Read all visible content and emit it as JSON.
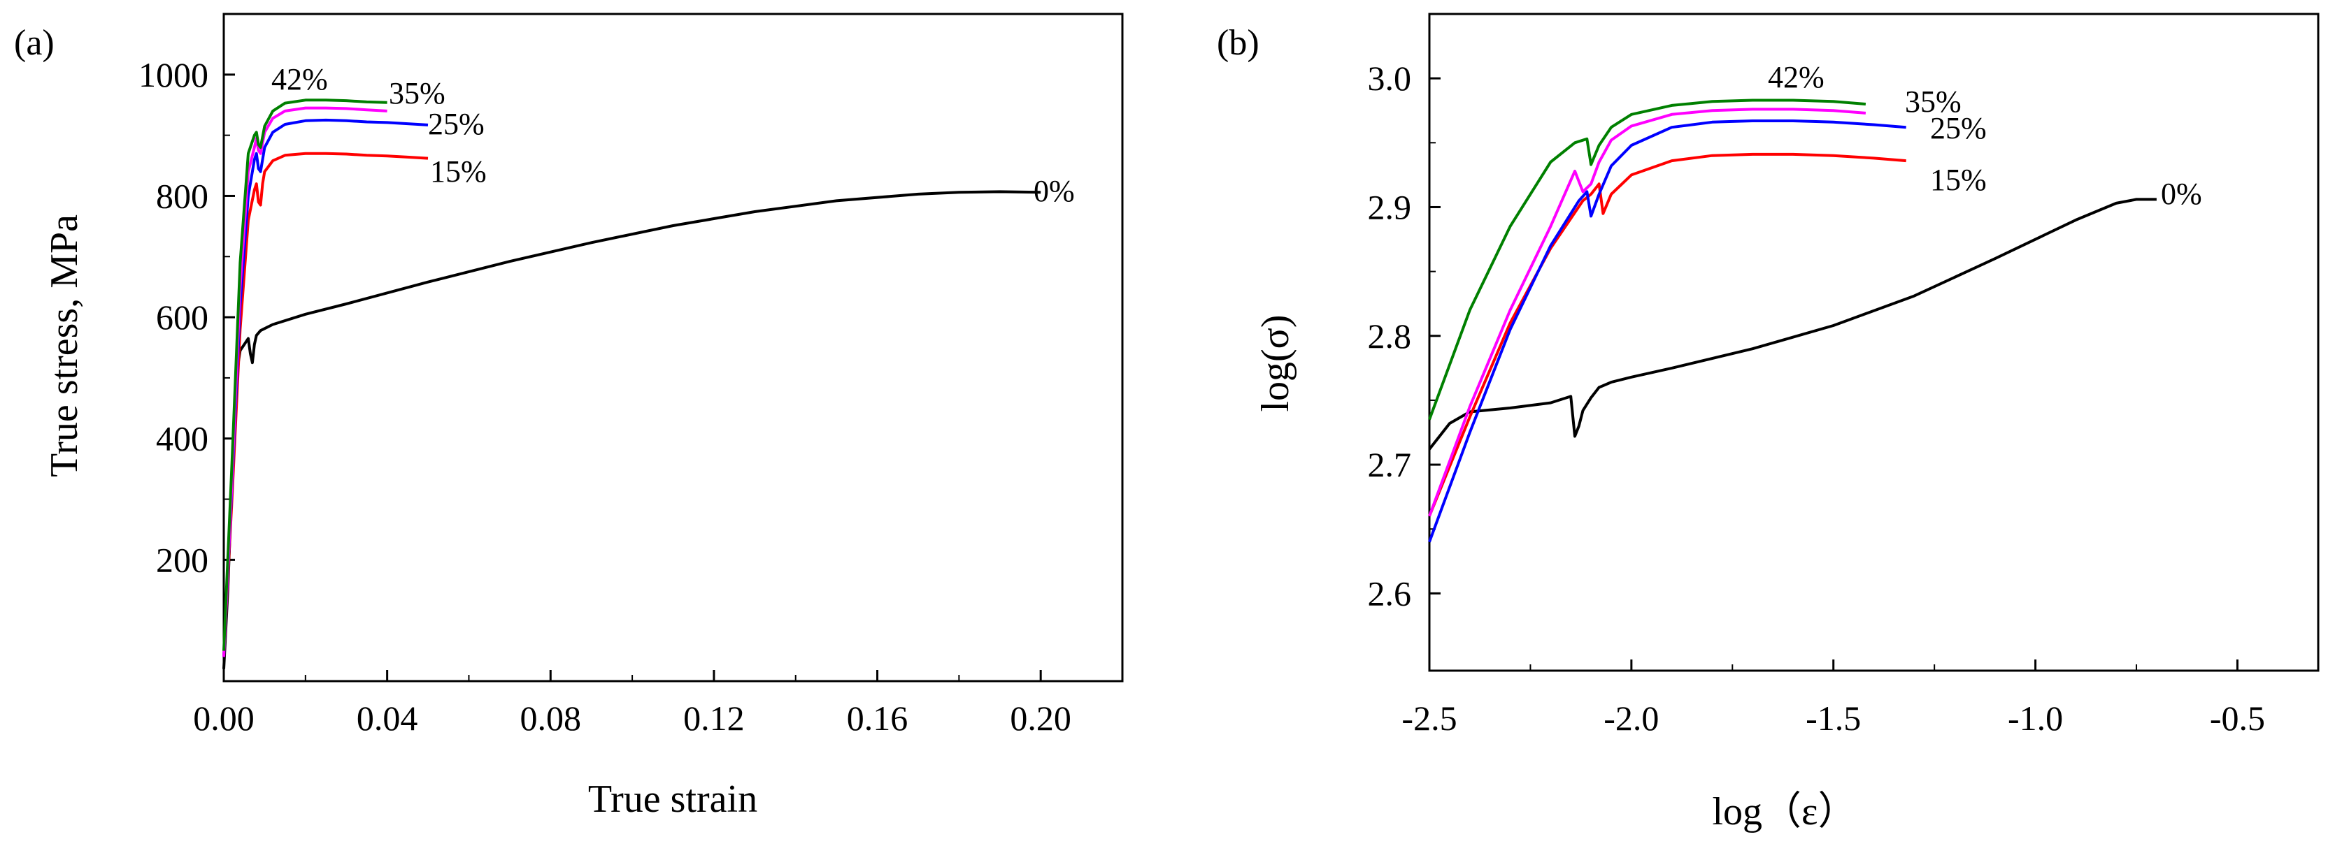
{
  "chart_data": [
    {
      "panel": "(a)",
      "type": "line",
      "title": "(a)",
      "xlabel": "True strain",
      "ylabel": "True stress, MPa",
      "xlim": [
        0,
        0.22
      ],
      "ylim": [
        0,
        1100
      ],
      "xticks": [
        0.0,
        0.04,
        0.08,
        0.12,
        0.16,
        0.2
      ],
      "xtick_labels": [
        "0.00",
        "0.04",
        "0.08",
        "0.12",
        "0.16",
        "0.20"
      ],
      "yticks": [
        200,
        400,
        600,
        800,
        1000
      ],
      "ytick_labels": [
        "200",
        "400",
        "600",
        "800",
        "1000"
      ],
      "grid": false,
      "series": [
        {
          "name": "0%",
          "color": "#000000",
          "x": [
            0.0,
            0.001,
            0.002,
            0.003,
            0.004,
            0.005,
            0.0055,
            0.006,
            0.0065,
            0.007,
            0.0075,
            0.008,
            0.009,
            0.012,
            0.02,
            0.03,
            0.05,
            0.07,
            0.09,
            0.11,
            0.13,
            0.15,
            0.17,
            0.18,
            0.19,
            0.2
          ],
          "y": [
            20,
            150,
            330,
            500,
            545,
            555,
            560,
            565,
            540,
            525,
            555,
            570,
            578,
            588,
            605,
            622,
            658,
            692,
            723,
            751,
            774,
            792,
            803,
            806,
            807,
            806
          ]
        },
        {
          "name": "15%",
          "color": "#ff0000",
          "x": [
            0.0,
            0.002,
            0.004,
            0.006,
            0.0075,
            0.008,
            0.0085,
            0.009,
            0.0095,
            0.01,
            0.012,
            0.015,
            0.02,
            0.025,
            0.03,
            0.035,
            0.04,
            0.045,
            0.05
          ],
          "y": [
            40,
            300,
            580,
            760,
            810,
            820,
            790,
            785,
            820,
            840,
            858,
            867,
            870,
            870,
            869,
            867,
            866,
            864,
            862
          ]
        },
        {
          "name": "25%",
          "color": "#0000ff",
          "x": [
            0.0,
            0.002,
            0.004,
            0.006,
            0.0075,
            0.008,
            0.0085,
            0.009,
            0.01,
            0.012,
            0.015,
            0.02,
            0.025,
            0.03,
            0.035,
            0.04,
            0.045,
            0.05
          ],
          "y": [
            40,
            320,
            620,
            800,
            860,
            870,
            845,
            840,
            880,
            905,
            918,
            924,
            925,
            924,
            922,
            921,
            919,
            917
          ]
        },
        {
          "name": "35%",
          "color": "#ff00ff",
          "x": [
            0.0,
            0.002,
            0.004,
            0.006,
            0.0075,
            0.008,
            0.0085,
            0.009,
            0.01,
            0.012,
            0.015,
            0.02,
            0.025,
            0.03,
            0.035,
            0.04
          ],
          "y": [
            40,
            330,
            650,
            840,
            880,
            895,
            875,
            870,
            905,
            928,
            940,
            945,
            945,
            944,
            942,
            940
          ]
        },
        {
          "name": "42%",
          "color": "#008000",
          "x": [
            0.0,
            0.002,
            0.004,
            0.006,
            0.0075,
            0.008,
            0.0085,
            0.009,
            0.01,
            0.012,
            0.015,
            0.02,
            0.025,
            0.03,
            0.035,
            0.04
          ],
          "y": [
            50,
            360,
            690,
            870,
            900,
            905,
            885,
            880,
            915,
            940,
            953,
            958,
            958,
            957,
            955,
            954
          ]
        }
      ],
      "annotations": [
        "42%",
        "35%",
        "25%",
        "15%",
        "0%"
      ]
    },
    {
      "panel": "(b)",
      "type": "line",
      "title": "(b)",
      "xlabel": "log（ε）",
      "ylabel": "log(σ)",
      "xlim": [
        -2.5,
        -0.3
      ],
      "ylim": [
        2.54,
        3.05
      ],
      "xticks": [
        -2.5,
        -2.0,
        -1.5,
        -1.0,
        -0.5
      ],
      "xtick_labels": [
        "-2.5",
        "-2.0",
        "-1.5",
        "-1.0",
        "-0.5"
      ],
      "yticks": [
        2.6,
        2.7,
        2.8,
        2.9,
        3.0
      ],
      "ytick_labels": [
        "2.6",
        "2.7",
        "2.8",
        "2.9",
        "3.0"
      ],
      "grid": false,
      "series": [
        {
          "name": "0%",
          "color": "#000000",
          "x": [
            -2.5,
            -2.45,
            -2.4,
            -2.3,
            -2.2,
            -2.15,
            -2.14,
            -2.13,
            -2.12,
            -2.1,
            -2.08,
            -2.05,
            -2.0,
            -1.9,
            -1.7,
            -1.5,
            -1.3,
            -1.1,
            -0.9,
            -0.8,
            -0.75,
            -0.7
          ],
          "y": [
            2.712,
            2.732,
            2.741,
            2.744,
            2.748,
            2.753,
            2.722,
            2.73,
            2.742,
            2.752,
            2.76,
            2.764,
            2.768,
            2.775,
            2.79,
            2.808,
            2.831,
            2.86,
            2.89,
            2.903,
            2.906,
            2.906
          ]
        },
        {
          "name": "15%",
          "color": "#ff0000",
          "x": [
            -2.5,
            -2.4,
            -2.3,
            -2.2,
            -2.12,
            -2.1,
            -2.08,
            -2.07,
            -2.05,
            -2.0,
            -1.9,
            -1.8,
            -1.7,
            -1.6,
            -1.5,
            -1.4,
            -1.32
          ],
          "y": [
            2.66,
            2.737,
            2.81,
            2.868,
            2.905,
            2.91,
            2.918,
            2.895,
            2.91,
            2.925,
            2.936,
            2.94,
            2.941,
            2.941,
            2.94,
            2.938,
            2.936
          ]
        },
        {
          "name": "25%",
          "color": "#0000ff",
          "x": [
            -2.5,
            -2.4,
            -2.3,
            -2.2,
            -2.13,
            -2.11,
            -2.1,
            -2.08,
            -2.05,
            -2.0,
            -1.9,
            -1.8,
            -1.7,
            -1.6,
            -1.5,
            -1.4,
            -1.32
          ],
          "y": [
            2.64,
            2.725,
            2.805,
            2.87,
            2.905,
            2.912,
            2.893,
            2.91,
            2.932,
            2.948,
            2.962,
            2.966,
            2.967,
            2.967,
            2.966,
            2.964,
            2.962
          ]
        },
        {
          "name": "35%",
          "color": "#ff00ff",
          "x": [
            -2.5,
            -2.4,
            -2.3,
            -2.2,
            -2.14,
            -2.12,
            -2.1,
            -2.08,
            -2.05,
            -2.0,
            -1.9,
            -1.8,
            -1.7,
            -1.6,
            -1.5,
            -1.42
          ],
          "y": [
            2.66,
            2.745,
            2.82,
            2.885,
            2.928,
            2.912,
            2.918,
            2.935,
            2.952,
            2.963,
            2.972,
            2.975,
            2.976,
            2.976,
            2.975,
            2.973
          ]
        },
        {
          "name": "42%",
          "color": "#008000",
          "x": [
            -2.5,
            -2.4,
            -2.3,
            -2.2,
            -2.14,
            -2.11,
            -2.1,
            -2.08,
            -2.05,
            -2.0,
            -1.9,
            -1.8,
            -1.7,
            -1.6,
            -1.5,
            -1.42
          ],
          "y": [
            2.735,
            2.82,
            2.885,
            2.935,
            2.95,
            2.953,
            2.933,
            2.948,
            2.962,
            2.972,
            2.979,
            2.982,
            2.983,
            2.983,
            2.982,
            2.98
          ]
        }
      ],
      "annotations": [
        "42%",
        "35%",
        "25%",
        "15%",
        "0%"
      ]
    }
  ]
}
